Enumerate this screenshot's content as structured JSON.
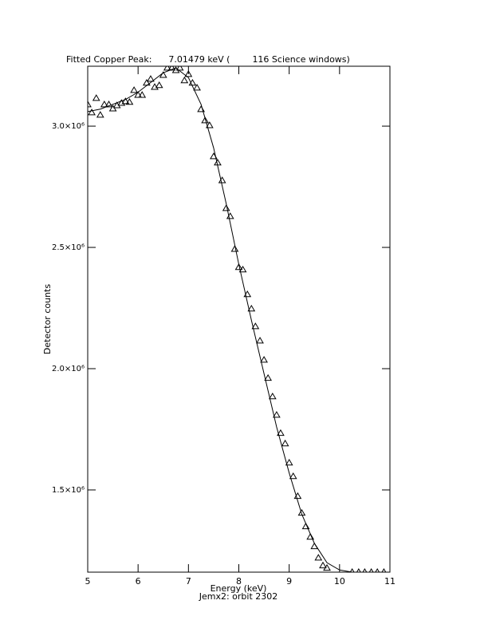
{
  "chart_data": {
    "type": "scatter",
    "title": "Fitted Copper Peak:      7.01479 keV (        116 Science windows)",
    "xlabel": "Energy (keV)",
    "subtitle": "Jemx2: orbit 2302",
    "ylabel": "Detector counts",
    "xlim": [
      5,
      11
    ],
    "xticks": [
      5,
      6,
      7,
      8,
      9,
      10,
      11
    ],
    "ylim": [
      1161000,
      3247000
    ],
    "yticks": [
      {
        "value": 1500000,
        "label": "1.5×10⁶"
      },
      {
        "value": 2000000,
        "label": "2.0×10⁶"
      },
      {
        "value": 2500000,
        "label": "2.5×10⁶"
      },
      {
        "value": 3000000,
        "label": "3.0×10⁶"
      }
    ],
    "series": [
      {
        "name": "Data",
        "color": "#000000",
        "marker": "triangle",
        "x": [
          5.0,
          5.08,
          5.17,
          5.25,
          5.33,
          5.42,
          5.5,
          5.58,
          5.67,
          5.75,
          5.83,
          5.92,
          6.0,
          6.08,
          6.17,
          6.25,
          6.33,
          6.42,
          6.5,
          6.58,
          6.67,
          6.75,
          6.83,
          6.92,
          7.0,
          7.08,
          7.17,
          7.25,
          7.33,
          7.42,
          7.5,
          7.58,
          7.67,
          7.75,
          7.83,
          7.92,
          8.0,
          8.08,
          8.17,
          8.25,
          8.33,
          8.42,
          8.5,
          8.58,
          8.67,
          8.75,
          8.83,
          8.92,
          9.0,
          9.08,
          9.17,
          9.25,
          9.33,
          9.42,
          9.5,
          9.58,
          9.67,
          9.75,
          10.25,
          10.38,
          10.5,
          10.63,
          10.75,
          10.88
        ],
        "values": [
          3089000,
          3056000,
          3115000,
          3046000,
          3089000,
          3089000,
          3072000,
          3085000,
          3095000,
          3102000,
          3099000,
          3148000,
          3128000,
          3128000,
          3178000,
          3194000,
          3161000,
          3168000,
          3210000,
          3240000,
          3240000,
          3230000,
          3240000,
          3188000,
          3214000,
          3178000,
          3158000,
          3069000,
          3023000,
          3003000,
          2875000,
          2849000,
          2776000,
          2661000,
          2628000,
          2493000,
          2418000,
          2408000,
          2306000,
          2247000,
          2174000,
          2115000,
          2036000,
          1961000,
          1885000,
          1809000,
          1734000,
          1691000,
          1612000,
          1556000,
          1474000,
          1405000,
          1349000,
          1306000,
          1267000,
          1220000,
          1188000,
          1178000,
          1161000,
          1161000,
          1161000,
          1161000,
          1161000,
          1161000
        ]
      },
      {
        "name": "Fit",
        "color": "#000000",
        "marker": "line",
        "x": [
          5.0,
          5.25,
          5.5,
          5.75,
          6.0,
          6.25,
          6.5,
          6.75,
          7.0,
          7.25,
          7.5,
          7.75,
          8.0,
          8.25,
          8.5,
          8.75,
          9.0,
          9.25,
          9.5,
          9.75,
          10.0,
          10.25
        ],
        "values": [
          3060000,
          3070000,
          3090000,
          3110000,
          3140000,
          3180000,
          3220000,
          3240000,
          3200000,
          3090000,
          2910000,
          2680000,
          2430000,
          2200000,
          1980000,
          1760000,
          1570000,
          1400000,
          1280000,
          1200000,
          1170000,
          1161000
        ]
      }
    ]
  }
}
